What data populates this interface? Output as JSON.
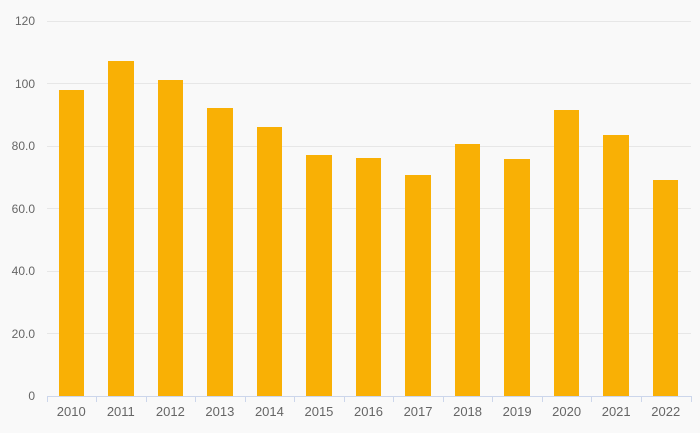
{
  "chart_data": {
    "type": "bar",
    "title": "",
    "xlabel": "",
    "ylabel": "",
    "categories": [
      "2010",
      "2011",
      "2012",
      "2013",
      "2014",
      "2015",
      "2016",
      "2017",
      "2018",
      "2019",
      "2020",
      "2021",
      "2022"
    ],
    "values": [
      98,
      107.2,
      101.1,
      92.3,
      86.2,
      77,
      76.3,
      70.6,
      80.8,
      76,
      91.5,
      83.6,
      69.2
    ],
    "ylim": [
      0,
      120
    ],
    "y_tick_values": [
      0,
      20,
      40,
      60,
      80,
      100,
      120
    ],
    "y_tick_labels": [
      "0",
      "20.0",
      "40.0",
      "60.0",
      "80.0",
      "100",
      "120"
    ],
    "grid": true,
    "legend": false,
    "colors": {
      "bar": "#F9B005",
      "background": "#f9f9f9",
      "gridline": "#e7e7e7",
      "axis_line": "#ccd6eb",
      "label": "#666666"
    }
  }
}
